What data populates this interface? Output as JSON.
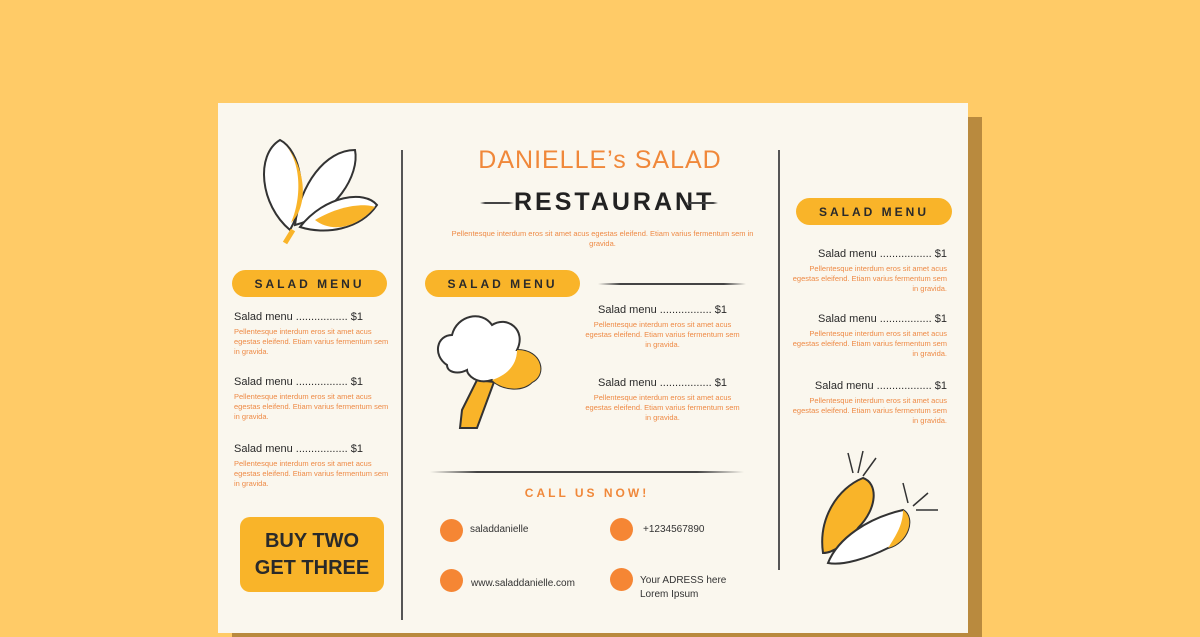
{
  "colors": {
    "background": "#FFCB67",
    "card": "#FAF7EE",
    "accent": "#F9B429",
    "orange_text": "#F0883A",
    "contact_dot": "#F58634"
  },
  "header": {
    "title": "DANIELLE’s SALAD",
    "subtitle": "RESTAURANT",
    "description": "Pellentesque interdum eros sit amet acus egestas eleifend. Etiam varius fermentum sem in gravida."
  },
  "left": {
    "pill": "SALAD MENU",
    "items": [
      {
        "title": "Salad menu ................. $1",
        "desc": "Pellentesque interdum eros sit amet acus egestas eleifend. Etiam varius fermentum sem in gravida."
      },
      {
        "title": "Salad menu ................. $1",
        "desc": "Pellentesque interdum eros sit amet acus egestas eleifend. Etiam varius fermentum sem in gravida."
      },
      {
        "title": "Salad menu ................. $1",
        "desc": "Pellentesque interdum eros sit amet acus egestas eleifend. Etiam varius fermentum sem in gravida."
      }
    ],
    "promo_line1": "BUY TWO",
    "promo_line2": "GET THREE"
  },
  "middle": {
    "pill": "SALAD MENU",
    "items": [
      {
        "title": "Salad menu ................. $1",
        "desc": "Pellentesque interdum eros sit amet acus egestas eleifend. Etiam varius fermentum sem in gravida."
      },
      {
        "title": "Salad menu ................. $1",
        "desc": "Pellentesque interdum eros sit amet acus egestas eleifend. Etiam varius fermentum sem in gravida."
      }
    ]
  },
  "contact": {
    "heading": "CALL US NOW!",
    "social": "saladdanielle",
    "phone": "+1234567890",
    "website": "www.saladdanielle.com",
    "address_line1": "Your ADRESS here",
    "address_line2": "Lorem Ipsum"
  },
  "right": {
    "pill": "SALAD MENU",
    "items": [
      {
        "title": "Salad menu ................. $1",
        "desc": "Pellentesque interdum eros sit amet acus egestas eleifend. Etiam varius fermentum sem in gravida."
      },
      {
        "title": "Salad menu ................. $1",
        "desc": "Pellentesque interdum eros sit amet acus egestas eleifend. Etiam varius fermentum sem in gravida."
      },
      {
        "title": "Salad menu .................. $1",
        "desc": "Pellentesque interdum eros sit amet acus egestas eleifend. Etiam varius fermentum sem in gravida."
      }
    ]
  },
  "icons": [
    "leaf-icon",
    "broccoli-icon",
    "carrot-icon"
  ]
}
